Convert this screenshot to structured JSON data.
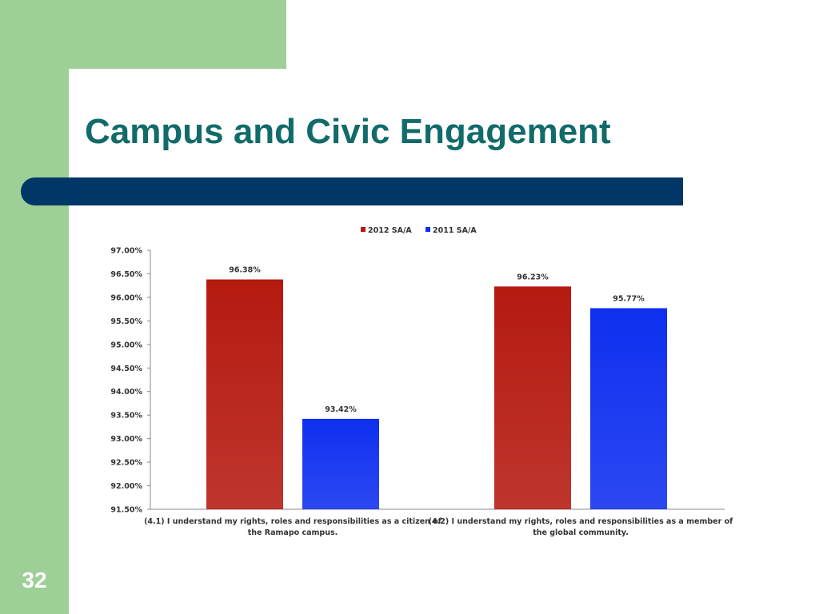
{
  "slide": {
    "title": "Campus and Civic Engagement",
    "page_number": "32",
    "colors": {
      "accent_green": "#9dcf97",
      "title_color": "#116b6a",
      "bar_navy": "#003767"
    }
  },
  "chart_data": {
    "type": "bar",
    "categories": [
      [
        "(4.1) I understand my rights, roles and responsibilities as a citizen of",
        "the Ramapo campus."
      ],
      [
        "(4.2) I understand my rights, roles and responsibilities as a member of",
        "the global community."
      ]
    ],
    "series": [
      {
        "name": "2012 SA/A",
        "color": "#b51a10",
        "values": [
          96.38,
          96.23
        ],
        "labels": [
          "96.38%",
          "96.23%"
        ]
      },
      {
        "name": "2011 SA/A",
        "color": "#0f2ff0",
        "values": [
          93.42,
          95.77
        ],
        "labels": [
          "93.42%",
          "95.77%"
        ]
      }
    ],
    "ylim": [
      91.5,
      97.0
    ],
    "yticks": [
      "97.00%",
      "96.50%",
      "96.00%",
      "95.50%",
      "95.00%",
      "94.50%",
      "94.00%",
      "93.50%",
      "93.00%",
      "92.50%",
      "92.00%",
      "91.50%"
    ],
    "ytick_values": [
      97.0,
      96.5,
      96.0,
      95.5,
      95.0,
      94.5,
      94.0,
      93.5,
      93.0,
      92.5,
      92.0,
      91.5
    ],
    "legend_position": "top-center",
    "grid": false
  }
}
